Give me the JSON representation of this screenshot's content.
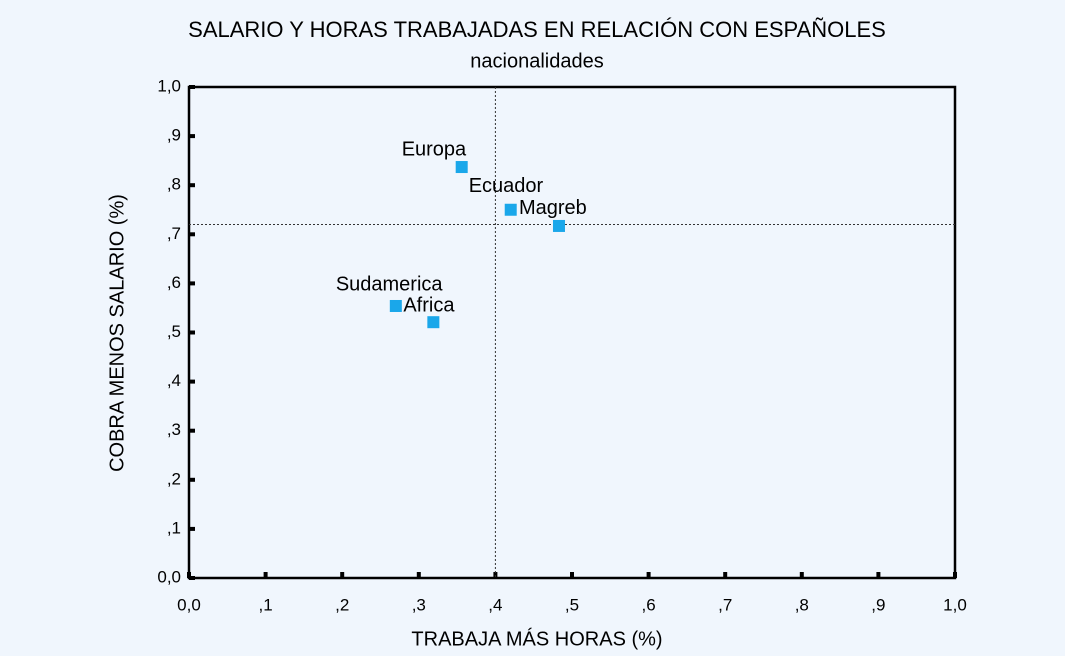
{
  "chart_data": {
    "type": "scatter",
    "title": "SALARIO Y HORAS TRABAJADAS EN RELACIÓN CON ESPAÑOLES",
    "subtitle": "nacionalidades",
    "x_label": "TRABAJA MÁS HORAS (%)",
    "y_label": "COBRA MENOS SALARIO (%)",
    "series": [
      {
        "color": "#1aa7ea",
        "names": [
          "Europa",
          "Ecuador",
          "Magreb",
          "Sudamerica",
          "Africa"
        ],
        "x": [
          0.356,
          0.42,
          0.483,
          0.27,
          0.319
        ],
        "values": [
          0.837,
          0.75,
          0.717,
          0.554,
          0.521
        ]
      }
    ],
    "reference_lines": {
      "x": 0.4,
      "y": 0.72
    },
    "xlim": [
      0,
      1
    ],
    "ylim": [
      0,
      1
    ],
    "xticks": [
      {
        "value": 0,
        "label": "0,0"
      },
      {
        "value": 0.1,
        "label": ",1"
      },
      {
        "value": 0.2,
        "label": ",2"
      },
      {
        "value": 0.3,
        "label": ",3"
      },
      {
        "value": 0.4,
        "label": ",4"
      },
      {
        "value": 0.5,
        "label": ",5"
      },
      {
        "value": 0.6,
        "label": ",6"
      },
      {
        "value": 0.7,
        "label": ",7"
      },
      {
        "value": 0.8,
        "label": ",8"
      },
      {
        "value": 0.9,
        "label": ",9"
      },
      {
        "value": 1,
        "label": "1,0"
      }
    ],
    "yticks": [
      {
        "value": 0,
        "label": "0,0"
      },
      {
        "value": 0.1,
        "label": ",1"
      },
      {
        "value": 0.2,
        "label": ",2"
      },
      {
        "value": 0.3,
        "label": ",3"
      },
      {
        "value": 0.4,
        "label": ",4"
      },
      {
        "value": 0.5,
        "label": ",5"
      },
      {
        "value": 0.6,
        "label": ",6"
      },
      {
        "value": 0.7,
        "label": ",7"
      },
      {
        "value": 0.8,
        "label": ",8"
      },
      {
        "value": 0.9,
        "label": ",9"
      },
      {
        "value": 1,
        "label": "1,0"
      }
    ]
  }
}
